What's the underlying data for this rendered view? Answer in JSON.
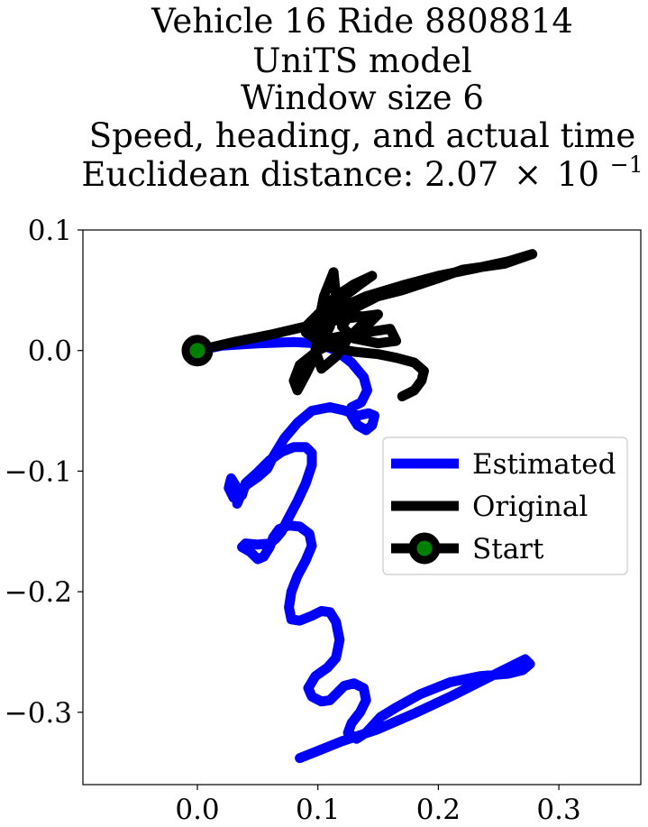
{
  "chart_data": {
    "type": "line",
    "title_lines": [
      "Vehicle 16 Ride 8808814",
      "UniTS model",
      "Window size 6",
      "Speed, heading, and actual time"
    ],
    "title_last_prefix": "Euclidean distance: 2.07",
    "title_last_times": "×",
    "title_last_base": "10",
    "title_last_exponent": "−1",
    "xlim": [
      -0.095,
      0.368
    ],
    "ylim": [
      -0.36,
      0.1
    ],
    "xticks": [
      0.0,
      0.1,
      0.2,
      0.3
    ],
    "xtick_labels": [
      "0.0",
      "0.1",
      "0.2",
      "0.3"
    ],
    "yticks": [
      0.1,
      0.0,
      -0.1,
      -0.2,
      -0.3
    ],
    "ytick_labels": [
      "0.1",
      "0.0",
      "−0.1",
      "−0.2",
      "−0.3"
    ],
    "grid": false,
    "legend_position": "center-right",
    "series": [
      {
        "name": "Estimated",
        "color": "#0000ff",
        "points": [
          [
            0,
            0
          ],
          [
            0.02,
            0.004
          ],
          [
            0.05,
            0.006
          ],
          [
            0.08,
            0.007
          ],
          [
            0.1,
            0.006
          ],
          [
            0.115,
            0.0
          ],
          [
            0.128,
            -0.01
          ],
          [
            0.138,
            -0.022
          ],
          [
            0.141,
            -0.033
          ],
          [
            0.136,
            -0.043
          ],
          [
            0.128,
            -0.047
          ],
          [
            0.128,
            -0.054
          ],
          [
            0.133,
            -0.062
          ],
          [
            0.14,
            -0.066
          ],
          [
            0.145,
            -0.062
          ],
          [
            0.147,
            -0.054
          ],
          [
            0.142,
            -0.052
          ],
          [
            0.133,
            -0.054
          ],
          [
            0.123,
            -0.05
          ],
          [
            0.11,
            -0.047
          ],
          [
            0.095,
            -0.05
          ],
          [
            0.083,
            -0.06
          ],
          [
            0.072,
            -0.073
          ],
          [
            0.063,
            -0.088
          ],
          [
            0.058,
            -0.098
          ],
          [
            0.05,
            -0.105
          ],
          [
            0.04,
            -0.112
          ],
          [
            0.036,
            -0.12
          ],
          [
            0.033,
            -0.127
          ],
          [
            0.035,
            -0.121
          ],
          [
            0.033,
            -0.114
          ],
          [
            0.028,
            -0.106
          ],
          [
            0.026,
            -0.114
          ],
          [
            0.03,
            -0.122
          ],
          [
            0.037,
            -0.12
          ],
          [
            0.04,
            -0.11
          ],
          [
            0.05,
            -0.101
          ],
          [
            0.06,
            -0.091
          ],
          [
            0.07,
            -0.084
          ],
          [
            0.08,
            -0.08
          ],
          [
            0.09,
            -0.08
          ],
          [
            0.095,
            -0.085
          ],
          [
            0.095,
            -0.095
          ],
          [
            0.09,
            -0.11
          ],
          [
            0.083,
            -0.125
          ],
          [
            0.075,
            -0.14
          ],
          [
            0.07,
            -0.15
          ],
          [
            0.065,
            -0.156
          ],
          [
            0.06,
            -0.16
          ],
          [
            0.05,
            -0.161
          ],
          [
            0.04,
            -0.16
          ],
          [
            0.037,
            -0.163
          ],
          [
            0.044,
            -0.167
          ],
          [
            0.05,
            -0.173
          ],
          [
            0.055,
            -0.171
          ],
          [
            0.06,
            -0.163
          ],
          [
            0.063,
            -0.155
          ],
          [
            0.068,
            -0.148
          ],
          [
            0.076,
            -0.145
          ],
          [
            0.085,
            -0.146
          ],
          [
            0.093,
            -0.152
          ],
          [
            0.095,
            -0.162
          ],
          [
            0.09,
            -0.174
          ],
          [
            0.083,
            -0.187
          ],
          [
            0.078,
            -0.2
          ],
          [
            0.076,
            -0.213
          ],
          [
            0.078,
            -0.223
          ],
          [
            0.085,
            -0.224
          ],
          [
            0.095,
            -0.22
          ],
          [
            0.103,
            -0.216
          ],
          [
            0.11,
            -0.217
          ],
          [
            0.115,
            -0.225
          ],
          [
            0.118,
            -0.24
          ],
          [
            0.115,
            -0.255
          ],
          [
            0.108,
            -0.263
          ],
          [
            0.098,
            -0.27
          ],
          [
            0.092,
            -0.28
          ],
          [
            0.095,
            -0.287
          ],
          [
            0.103,
            -0.291
          ],
          [
            0.11,
            -0.29
          ],
          [
            0.117,
            -0.283
          ],
          [
            0.122,
            -0.278
          ],
          [
            0.13,
            -0.276
          ],
          [
            0.138,
            -0.28
          ],
          [
            0.14,
            -0.29
          ],
          [
            0.135,
            -0.3
          ],
          [
            0.128,
            -0.309
          ],
          [
            0.125,
            -0.317
          ],
          [
            0.132,
            -0.322
          ],
          [
            0.14,
            -0.317
          ],
          [
            0.152,
            -0.304
          ],
          [
            0.165,
            -0.296
          ],
          [
            0.185,
            -0.285
          ],
          [
            0.21,
            -0.275
          ],
          [
            0.235,
            -0.27
          ],
          [
            0.258,
            -0.268
          ],
          [
            0.27,
            -0.265
          ],
          [
            0.276,
            -0.26
          ],
          [
            0.272,
            -0.256
          ],
          [
            0.26,
            -0.262
          ],
          [
            0.24,
            -0.272
          ],
          [
            0.21,
            -0.287
          ],
          [
            0.18,
            -0.301
          ],
          [
            0.15,
            -0.314
          ],
          [
            0.12,
            -0.324
          ],
          [
            0.1,
            -0.332
          ],
          [
            0.085,
            -0.338
          ]
        ]
      },
      {
        "name": "Original",
        "color": "#000000",
        "points": [
          [
            0,
            0
          ],
          [
            0.03,
            0.007
          ],
          [
            0.06,
            0.013
          ],
          [
            0.09,
            0.02
          ],
          [
            0.12,
            0.026
          ],
          [
            0.15,
            0.03
          ],
          [
            0.14,
            0.02
          ],
          [
            0.12,
            0.01
          ],
          [
            0.1,
            0.0
          ],
          [
            0.085,
            -0.012
          ],
          [
            0.08,
            -0.025
          ],
          [
            0.083,
            -0.033
          ],
          [
            0.09,
            -0.02
          ],
          [
            0.1,
            0.0
          ],
          [
            0.11,
            0.02
          ],
          [
            0.115,
            0.045
          ],
          [
            0.113,
            0.065
          ],
          [
            0.105,
            0.045
          ],
          [
            0.1,
            0.02
          ],
          [
            0.098,
            0.0
          ],
          [
            0.103,
            -0.015
          ],
          [
            0.115,
            -0.005
          ],
          [
            0.125,
            0.01
          ],
          [
            0.135,
            0.02
          ],
          [
            0.145,
            0.027
          ],
          [
            0.125,
            0.03
          ],
          [
            0.105,
            0.027
          ],
          [
            0.09,
            0.02
          ],
          [
            0.1,
            0.03
          ],
          [
            0.118,
            0.042
          ],
          [
            0.135,
            0.055
          ],
          [
            0.145,
            0.062
          ],
          [
            0.13,
            0.055
          ],
          [
            0.115,
            0.045
          ],
          [
            0.1,
            0.03
          ],
          [
            0.09,
            0.015
          ],
          [
            0.1,
            0.008
          ],
          [
            0.12,
            0.012
          ],
          [
            0.14,
            0.015
          ],
          [
            0.16,
            0.018
          ],
          [
            0.165,
            0.008
          ],
          [
            0.15,
            0.006
          ],
          [
            0.13,
            0.01
          ],
          [
            0.12,
            0.02
          ],
          [
            0.13,
            0.035
          ],
          [
            0.15,
            0.045
          ],
          [
            0.17,
            0.05
          ],
          [
            0.2,
            0.06
          ],
          [
            0.22,
            0.067
          ],
          [
            0.255,
            0.072
          ],
          [
            0.278,
            0.08
          ],
          [
            0.258,
            0.074
          ],
          [
            0.23,
            0.068
          ],
          [
            0.2,
            0.062
          ],
          [
            0.17,
            0.054
          ],
          [
            0.14,
            0.045
          ],
          [
            0.12,
            0.036
          ],
          [
            0.105,
            0.025
          ],
          [
            0.1,
            0.012
          ],
          [
            0.11,
            0.003
          ],
          [
            0.13,
            -0.001
          ],
          [
            0.15,
            -0.003
          ],
          [
            0.165,
            -0.006
          ],
          [
            0.18,
            -0.01
          ],
          [
            0.188,
            -0.017
          ],
          [
            0.186,
            -0.025
          ],
          [
            0.18,
            -0.033
          ],
          [
            0.17,
            -0.038
          ]
        ]
      }
    ],
    "start": {
      "name": "Start",
      "x": 0.0,
      "y": 0.0,
      "marker_edge_color": "#000000",
      "marker_face_color": "#008000"
    }
  }
}
